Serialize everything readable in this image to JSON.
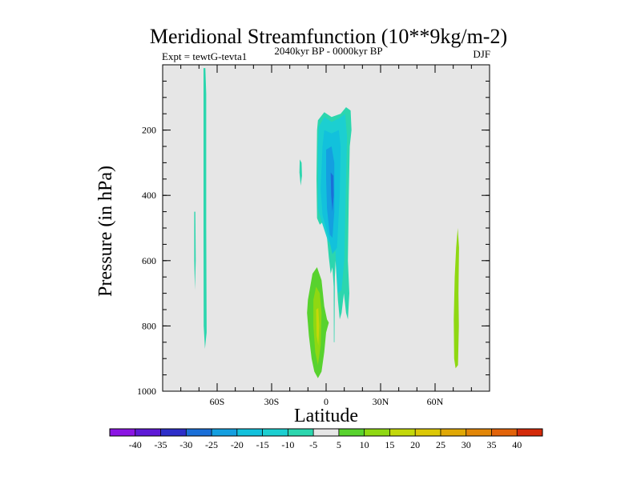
{
  "chart_data": {
    "type": "contour",
    "title": "Meridional Streamfunction (10**9kg/m-2)",
    "left_string": "Expt = tewtG-tevta1",
    "center_string": "2040kyr BP - 0000kyr BP",
    "right_string": "DJF",
    "xlabel": "Latitude",
    "ylabel": "Pressure (in hPa)",
    "xlim": [
      -90,
      90
    ],
    "ylim": [
      1000,
      0
    ],
    "x_ticks": [
      {
        "value": -60,
        "label": "60S"
      },
      {
        "value": -30,
        "label": "30S"
      },
      {
        "value": 0,
        "label": "0"
      },
      {
        "value": 30,
        "label": "30N"
      },
      {
        "value": 60,
        "label": "60N"
      }
    ],
    "y_ticks": [
      {
        "value": 200,
        "label": "200"
      },
      {
        "value": 400,
        "label": "400"
      },
      {
        "value": 600,
        "label": "600"
      },
      {
        "value": 800,
        "label": "800"
      },
      {
        "value": 1000,
        "label": "1000"
      }
    ],
    "colorbar": {
      "levels": [
        -40,
        -35,
        -30,
        -25,
        -20,
        -15,
        -10,
        -5,
        5,
        10,
        15,
        20,
        25,
        30,
        35,
        40
      ],
      "labels": [
        "-40",
        "-35",
        "-30",
        "-25",
        "-20",
        "-15",
        "-10",
        "-5",
        "5",
        "10",
        "15",
        "20",
        "25",
        "30",
        "35",
        "40"
      ],
      "colors": [
        "#8b14e3",
        "#5e19d6",
        "#2d2ec9",
        "#1a6fd8",
        "#149fe0",
        "#12c1dc",
        "#1ccfd1",
        "#2cd6ae",
        "#e6e6e6",
        "#58d22e",
        "#8fd812",
        "#c3d80a",
        "#dcc806",
        "#e0a805",
        "#e28607",
        "#e26309",
        "#d42a0a"
      ]
    },
    "contours": [
      {
        "name": "south-cell-thin",
        "level": -5,
        "points": [
          [
            -67.5,
            10
          ],
          [
            -66.5,
            10
          ],
          [
            -66,
            90
          ],
          [
            -66,
            500
          ],
          [
            -65.8,
            820
          ],
          [
            -66.7,
            870
          ],
          [
            -67.4,
            800
          ],
          [
            -67.5,
            500
          ]
        ]
      },
      {
        "name": "south-cell-strip",
        "level": -5,
        "points": [
          [
            -72.6,
            450
          ],
          [
            -72,
            450
          ],
          [
            -71.8,
            600
          ],
          [
            -72.2,
            690
          ],
          [
            -72.6,
            600
          ]
        ]
      },
      {
        "name": "small-blob",
        "level": -5,
        "points": [
          [
            -14.5,
            290
          ],
          [
            -13.5,
            300
          ],
          [
            -13.3,
            340
          ],
          [
            -14,
            370
          ],
          [
            -14.7,
            330
          ]
        ]
      },
      {
        "name": "central-cell",
        "level": -5,
        "points": [
          [
            -4.5,
            170
          ],
          [
            -1,
            145
          ],
          [
            3,
            160
          ],
          [
            8,
            150
          ],
          [
            11,
            130
          ],
          [
            13.5,
            140
          ],
          [
            14,
            200
          ],
          [
            13,
            250
          ],
          [
            12.5,
            400
          ],
          [
            12,
            600
          ],
          [
            12.8,
            700
          ],
          [
            12,
            780
          ],
          [
            11,
            760
          ],
          [
            9.8,
            700
          ],
          [
            8.5,
            760
          ],
          [
            7.5,
            780
          ],
          [
            6.5,
            720
          ],
          [
            5.2,
            600
          ],
          [
            4.8,
            650
          ],
          [
            4.6,
            850
          ],
          [
            4.3,
            850
          ],
          [
            4.2,
            680
          ],
          [
            3.5,
            620
          ],
          [
            2.5,
            640
          ],
          [
            1.5,
            590
          ],
          [
            0,
            500
          ],
          [
            -1.5,
            480
          ],
          [
            -3.5,
            490
          ],
          [
            -5,
            470
          ],
          [
            -5.3,
            350
          ],
          [
            -5,
            200
          ]
        ]
      },
      {
        "name": "central-core",
        "level": -10,
        "points": [
          [
            -4,
            190
          ],
          [
            -1,
            160
          ],
          [
            3,
            175
          ],
          [
            7,
            165
          ],
          [
            10.5,
            150
          ],
          [
            11.5,
            220
          ],
          [
            11,
            350
          ],
          [
            10,
            600
          ],
          [
            8.5,
            690
          ],
          [
            6.5,
            700
          ],
          [
            5,
            560
          ],
          [
            1,
            540
          ],
          [
            -2.5,
            480
          ],
          [
            -4.5,
            440
          ],
          [
            -4.5,
            250
          ]
        ]
      },
      {
        "name": "central-inner",
        "level": -15,
        "points": [
          [
            -1,
            200
          ],
          [
            3,
            210
          ],
          [
            7,
            200
          ],
          [
            8,
            250
          ],
          [
            7.5,
            400
          ],
          [
            6,
            560
          ],
          [
            3.5,
            580
          ],
          [
            1,
            520
          ],
          [
            -2,
            460
          ],
          [
            -3,
            380
          ],
          [
            -2,
            250
          ]
        ]
      },
      {
        "name": "central-innermost",
        "level": -20,
        "points": [
          [
            0,
            260
          ],
          [
            3,
            250
          ],
          [
            4.5,
            300
          ],
          [
            4.5,
            450
          ],
          [
            3.5,
            530
          ],
          [
            2,
            520
          ],
          [
            0.5,
            440
          ],
          [
            0,
            350
          ]
        ]
      },
      {
        "name": "central-minimum",
        "level": -25,
        "points": [
          [
            2.5,
            330
          ],
          [
            4,
            340
          ],
          [
            4.2,
            400
          ],
          [
            3.5,
            450
          ],
          [
            2.8,
            400
          ]
        ]
      },
      {
        "name": "north-hadley",
        "level": 5,
        "points": [
          [
            -10,
            720
          ],
          [
            -7.5,
            640
          ],
          [
            -5,
            620
          ],
          [
            -2.5,
            660
          ],
          [
            -1,
            740
          ],
          [
            0.5,
            780
          ],
          [
            1.5,
            790
          ],
          [
            0,
            820
          ],
          [
            -1,
            880
          ],
          [
            -2.5,
            940
          ],
          [
            -4.5,
            960
          ],
          [
            -6.5,
            940
          ],
          [
            -8,
            900
          ],
          [
            -9.5,
            830
          ],
          [
            -10.5,
            760
          ]
        ]
      },
      {
        "name": "north-hadley-core",
        "level": 10,
        "points": [
          [
            -7,
            720
          ],
          [
            -5.5,
            680
          ],
          [
            -3.5,
            700
          ],
          [
            -2.5,
            760
          ],
          [
            -3,
            860
          ],
          [
            -4.5,
            920
          ],
          [
            -6,
            880
          ],
          [
            -7,
            800
          ]
        ]
      },
      {
        "name": "north-hadley-inner",
        "level": 15,
        "points": [
          [
            -5.5,
            750
          ],
          [
            -4.3,
            745
          ],
          [
            -3.8,
            800
          ],
          [
            -4.3,
            860
          ],
          [
            -5.2,
            830
          ]
        ]
      },
      {
        "name": "north-polar",
        "level": 10,
        "points": [
          [
            72.5,
            500
          ],
          [
            73.2,
            560
          ],
          [
            72.9,
            700
          ],
          [
            73.1,
            800
          ],
          [
            72.6,
            920
          ],
          [
            71.3,
            930
          ],
          [
            70.5,
            900
          ],
          [
            70.3,
            780
          ],
          [
            70.8,
            650
          ],
          [
            71.6,
            560
          ]
        ]
      }
    ]
  }
}
